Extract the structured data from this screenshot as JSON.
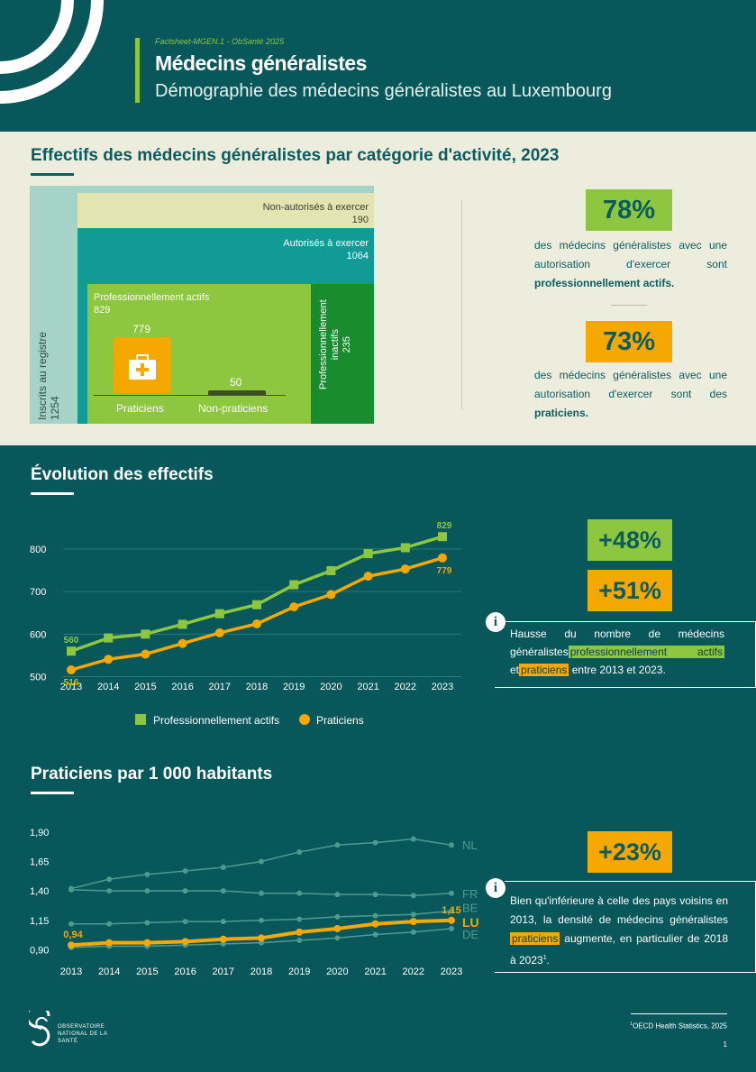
{
  "header": {
    "series": "Factsheet-MGEN.1 - ObSanté 2025",
    "title": "Médecins généralistes",
    "subtitle": "Démographie des médecins généralistes au Luxembourg"
  },
  "section1": {
    "title": "Effectifs des médecins généralistes par catégorie d'activité, 2023",
    "registry_label": "Inscrits au registre",
    "registry_value": "1254",
    "not_authorized_label": "Non-autorisés à exercer",
    "not_authorized_value": "190",
    "authorized_label": "Autorisés à exercer",
    "authorized_value": "1064",
    "active_label": "Professionnellement actifs",
    "active_value": "829",
    "inactive_label_1": "Professionnellement",
    "inactive_label_2": "inactifs",
    "inactive_value": "235",
    "practitioners_value": "779",
    "practitioners_label": "Praticiens",
    "non_practitioners_value": "50",
    "non_practitioners_label": "Non-praticiens",
    "kpi1_value": "78%",
    "kpi1_text": "des médecins généralistes avec une autorisation d'exercer sont",
    "kpi1_bold": "professionnellement actifs.",
    "kpi2_value": "73%",
    "kpi2_text": "des médecins généralistes avec une autorisation d'exercer sont des",
    "kpi2_bold": "praticiens.",
    "colors": {
      "registry": "#a6d3c7",
      "not_authorized": "#e2e5b1",
      "authorized": "#129a96",
      "active": "#8dc63f",
      "inactive": "#198c2f",
      "practitioners": "#f5a800"
    }
  },
  "section2": {
    "title": "Évolution des effectifs",
    "kpi_active": "+48%",
    "kpi_practitioners": "+51%",
    "info_part1": "Hausse du nombre de médecins généralistes",
    "info_hl1": "professionnellement actifs",
    "info_part2": "et",
    "info_hl2": "praticiens",
    "info_part3": "entre 2013 et 2023.",
    "legend_active": "Professionnellement actifs",
    "legend_practitioners": "Praticiens"
  },
  "section3": {
    "title": "Praticiens par 1 000 habitants",
    "kpi": "+23%",
    "info_part1": "Bien qu'inférieure à celle des pays voisins en 2013, la densité de médecins généralistes",
    "info_hl": "praticiens",
    "info_part2": "augmente, en particulier de 2018 à 2023",
    "info_sup": "1",
    "info_end": "."
  },
  "chart_data": [
    {
      "type": "line",
      "x": [
        "2013",
        "2014",
        "2015",
        "2016",
        "2017",
        "2018",
        "2019",
        "2020",
        "2021",
        "2022",
        "2023"
      ],
      "ylim": [
        480,
        840
      ],
      "yticks": [
        "500",
        "600",
        "700",
        "800"
      ],
      "series": [
        {
          "name": "Professionnellement actifs",
          "color": "#8dc63f",
          "marker": "square",
          "values": [
            560,
            591,
            600,
            623,
            648,
            669,
            716,
            749,
            789,
            803,
            829
          ],
          "labels": {
            "0": "560",
            "10": "829"
          }
        },
        {
          "name": "Praticiens",
          "color": "#f5a800",
          "marker": "circle",
          "values": [
            516,
            541,
            553,
            578,
            603,
            624,
            664,
            693,
            736,
            753,
            779
          ],
          "labels": {
            "0": "516",
            "10": "779"
          }
        }
      ]
    },
    {
      "type": "line",
      "x": [
        "2013",
        "2014",
        "2015",
        "2016",
        "2017",
        "2018",
        "2019",
        "2020",
        "2021",
        "2022",
        "2023"
      ],
      "ylim": [
        0.85,
        1.96
      ],
      "yticks": [
        "1,90",
        "1,65",
        "1,40",
        "1,15",
        "0,90"
      ],
      "series": [
        {
          "name": "NL",
          "color": "#4f9a8e",
          "values": [
            1.42,
            1.5,
            1.54,
            1.57,
            1.6,
            1.65,
            1.73,
            1.79,
            1.81,
            1.84,
            1.79
          ]
        },
        {
          "name": "FR",
          "color": "#4f9a8e",
          "values": [
            1.41,
            1.4,
            1.4,
            1.4,
            1.4,
            1.38,
            1.38,
            1.37,
            1.37,
            1.36,
            1.38
          ]
        },
        {
          "name": "BE",
          "color": "#4f9a8e",
          "values": [
            1.12,
            1.12,
            1.13,
            1.14,
            1.14,
            1.15,
            1.16,
            1.18,
            1.19,
            1.2,
            1.23
          ]
        },
        {
          "name": "DE",
          "color": "#4f9a8e",
          "values": [
            0.92,
            0.93,
            0.93,
            0.94,
            0.95,
            0.96,
            0.98,
            1.0,
            1.03,
            1.05,
            1.08
          ]
        },
        {
          "name": "LU",
          "color": "#f5a800",
          "values": [
            0.94,
            0.96,
            0.96,
            0.97,
            0.99,
            1.0,
            1.05,
            1.08,
            1.12,
            1.14,
            1.15
          ],
          "labels": {
            "0": "0,94",
            "10": "1,15"
          }
        }
      ]
    }
  ],
  "footer": {
    "logo": "OBSERVATOIRE NATIONAL DE LA SANTÉ",
    "footnote_sup": "1",
    "footnote": "OECD Health Statistics, 2025",
    "page": "1"
  }
}
